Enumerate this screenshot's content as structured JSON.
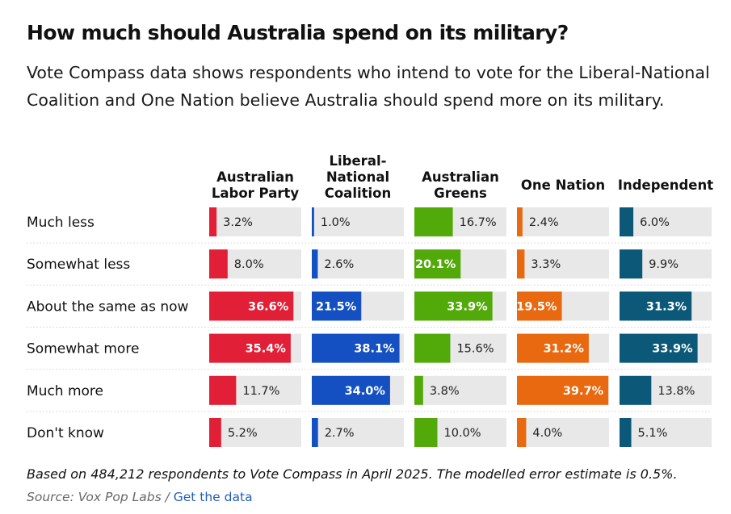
{
  "title": "How much should Australia spend on its military?",
  "subtitle": "Vote Compass data shows respondents who intend to vote for the Liberal-National Coalition and One Nation believe Australia should spend more on its military.",
  "footnote": "Based on 484,212 respondents to Vote Compass in April 2025. The modelled error estimate is 0.5%.",
  "source": {
    "label": "Source: Vox Pop Labs / ",
    "link": "Get the data"
  },
  "chart_data": {
    "type": "bar",
    "categories": [
      "Much less",
      "Somewhat less",
      "About the same as now",
      "Somewhat more",
      "Much more",
      "Don't know"
    ],
    "series": [
      {
        "name": "Australian Labor Party",
        "header_lines": [
          "Australian",
          "Labor Party"
        ],
        "color": "#e11f36",
        "values": [
          3.2,
          8.0,
          36.6,
          35.4,
          11.7,
          5.2
        ],
        "labels": [
          "3.2%",
          "8.0%",
          "36.6%",
          "35.4%",
          "11.7%",
          "5.2%"
        ]
      },
      {
        "name": "Liberal-National Coalition",
        "header_lines": [
          "Liberal-",
          "National",
          "Coalition"
        ],
        "color": "#1450c2",
        "values": [
          1.0,
          2.6,
          21.5,
          38.1,
          34.0,
          2.7
        ],
        "labels": [
          "1.0%",
          "2.6%",
          "21.5%",
          "38.1%",
          "34.0%",
          "2.7%"
        ]
      },
      {
        "name": "Australian Greens",
        "header_lines": [
          "Australian",
          "Greens"
        ],
        "color": "#52a90a",
        "values": [
          16.7,
          20.1,
          33.9,
          15.6,
          3.8,
          10.0
        ],
        "labels": [
          "16.7%",
          "20.1%",
          "33.9%",
          "15.6%",
          "3.8%",
          "10.0%"
        ]
      },
      {
        "name": "One Nation",
        "header_lines": [
          "One Nation"
        ],
        "color": "#e8690f",
        "values": [
          2.4,
          3.3,
          19.5,
          31.2,
          39.7,
          4.0
        ],
        "labels": [
          "2.4%",
          "3.3%",
          "19.5%",
          "31.2%",
          "39.7%",
          "4.0%"
        ]
      },
      {
        "name": "Independent",
        "header_lines": [
          "Independent"
        ],
        "color": "#0b5878",
        "values": [
          6.0,
          9.9,
          31.3,
          33.9,
          13.8,
          5.1
        ],
        "labels": [
          "6.0%",
          "9.9%",
          "31.3%",
          "33.9%",
          "13.8%",
          "5.1%"
        ]
      }
    ],
    "xlim": [
      0,
      40
    ],
    "track_color": "#e8e8e8",
    "divider_color": "#dddddd"
  }
}
